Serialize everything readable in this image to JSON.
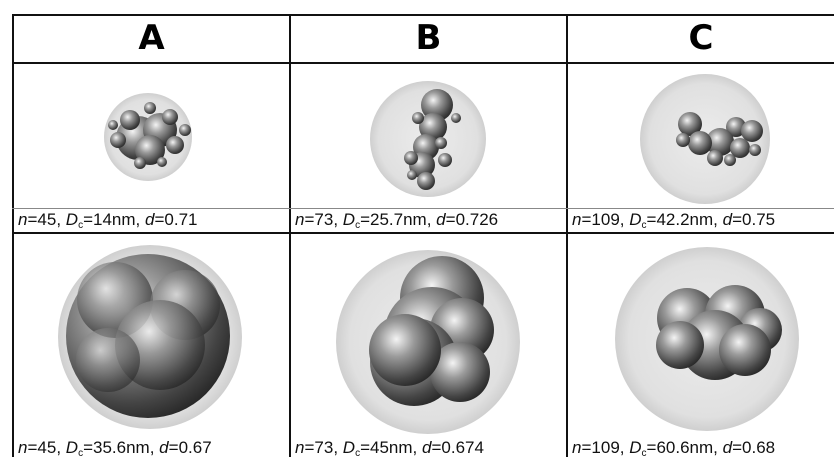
{
  "headers": [
    "A",
    "B",
    "C"
  ],
  "rows": [
    {
      "cells": [
        {
          "n": "45",
          "dc": "14nm",
          "d": "0.71"
        },
        {
          "n": "73",
          "dc": "25.7nm",
          "d": "0.726"
        },
        {
          "n": "109",
          "dc": "42.2nm",
          "d": "0.75"
        }
      ]
    },
    {
      "cells": [
        {
          "n": "45",
          "dc": "35.6nm",
          "d": "0.67"
        },
        {
          "n": "73",
          "dc": "45nm",
          "d": "0.674"
        },
        {
          "n": "109",
          "dc": "60.6nm",
          "d": "0.68"
        }
      ]
    }
  ],
  "labels": {
    "n": "n",
    "d": "d",
    "D": "D",
    "sub": "c"
  },
  "colors": {
    "sphere": "#e3e3e3",
    "particle_dark": "#2f2f2f",
    "particle_light": "#f0f0f0",
    "grid": "#111111"
  }
}
